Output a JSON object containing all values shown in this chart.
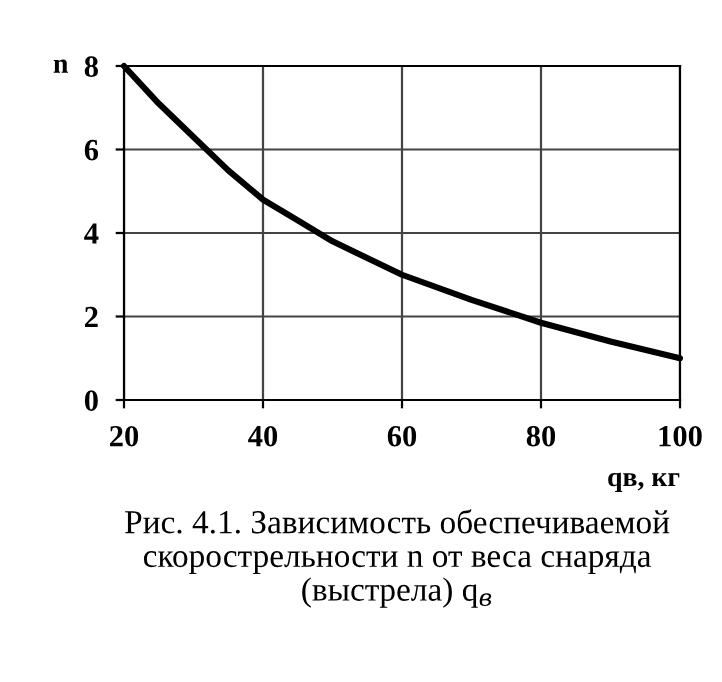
{
  "chart_data": {
    "type": "line",
    "ylabel": "n",
    "xlabel": "qв, кг",
    "annotations": [
      "Рис. 4.1. Зависимость обеспечиваемой скорострельности n от веса снаряда (выстрела) q$_{в}$"
    ],
    "x": [
      20,
      25,
      30,
      35,
      40,
      45,
      50,
      60,
      70,
      80,
      90,
      100
    ],
    "series": [
      {
        "color": "#000000",
        "values": [
          8,
          7.1,
          6.3,
          5.5,
          4.8,
          4.3,
          3.8,
          3.0,
          2.4,
          1.85,
          1.4,
          1.0
        ]
      }
    ],
    "xlim": [
      20,
      100
    ],
    "xticks": [
      20,
      40,
      60,
      80,
      100
    ],
    "ylim": [
      0,
      8
    ],
    "yticks": [
      0,
      2,
      4,
      6,
      8
    ],
    "grid": true,
    "legend": false,
    "marker": "none",
    "line_style": "solid"
  }
}
